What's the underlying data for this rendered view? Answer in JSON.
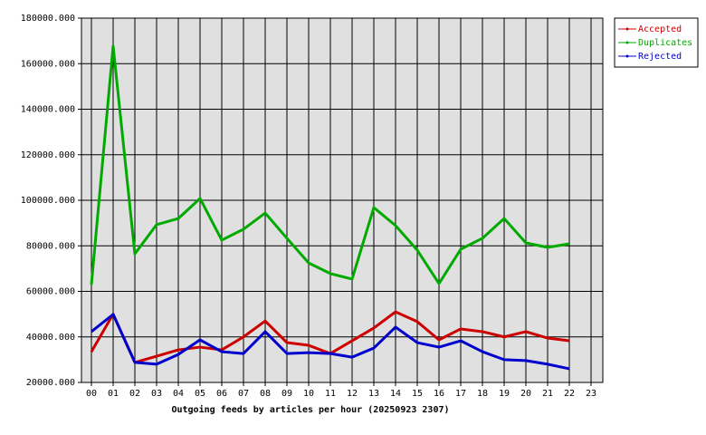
{
  "chart_data": {
    "type": "line",
    "xlabel": "Outgoing feeds by articles per hour (20250923 2307)",
    "categories": [
      "00",
      "01",
      "02",
      "03",
      "04",
      "05",
      "06",
      "07",
      "08",
      "09",
      "10",
      "11",
      "12",
      "13",
      "14",
      "15",
      "16",
      "17",
      "18",
      "19",
      "20",
      "21",
      "22",
      "23"
    ],
    "series": [
      {
        "name": "Accepted",
        "color": "#cc0000",
        "values": [
          33500,
          50000,
          28800,
          31500,
          34300,
          35500,
          34300,
          40000,
          47000,
          37500,
          36300,
          32700,
          38300,
          43900,
          51000,
          46700,
          38700,
          43500,
          42300,
          40000,
          42300,
          39500,
          38300,
          null
        ]
      },
      {
        "name": "Duplicates",
        "color": "#00aa00",
        "values": [
          63000,
          167700,
          76500,
          89300,
          92000,
          100800,
          82500,
          87300,
          94400,
          83300,
          72500,
          67800,
          65400,
          96800,
          88900,
          78100,
          63400,
          78500,
          83300,
          92000,
          81300,
          79300,
          80900,
          null
        ]
      },
      {
        "name": "Rejected",
        "color": "#0000cc",
        "values": [
          42300,
          49900,
          28800,
          28000,
          32300,
          38700,
          33500,
          32700,
          42300,
          32700,
          33100,
          32700,
          31100,
          35100,
          44300,
          37500,
          35500,
          38300,
          33500,
          30000,
          29600,
          28000,
          26000,
          null
        ]
      }
    ],
    "ylim": [
      20000,
      180000
    ],
    "yticks": [
      {
        "value": 20000,
        "label": "20000.000"
      },
      {
        "value": 40000,
        "label": "40000.000"
      },
      {
        "value": 60000,
        "label": "60000.000"
      },
      {
        "value": 80000,
        "label": "80000.000"
      },
      {
        "value": 100000,
        "label": "100000.000"
      },
      {
        "value": 120000,
        "label": "120000.000"
      },
      {
        "value": 140000,
        "label": "140000.000"
      },
      {
        "value": 160000,
        "label": "160000.000"
      },
      {
        "value": 180000,
        "label": "180000.000"
      }
    ],
    "grid": true,
    "legend": "top-right"
  }
}
